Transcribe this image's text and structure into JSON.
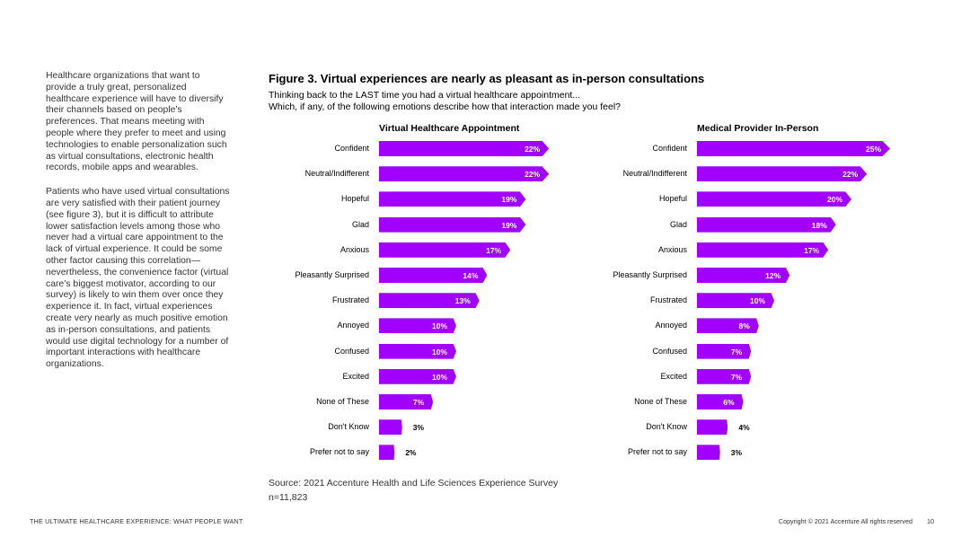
{
  "sidebar": {
    "paragraph1": "Healthcare organizations that want to provide a truly great, personalized healthcare experience will have to diversify their channels based on people’s preferences. That means meeting with people where they prefer to meet and using technologies to enable personalization such as virtual consultations, electronic health records, mobile apps and wearables.",
    "paragraph2": "Patients who have used virtual consultations are very satisfied with their patient journey (see figure 3), but it is difficult to attribute lower satisfaction levels among those who never had a virtual care appointment to the lack of virtual experience. It could be some other factor causing this correlation—nevertheless, the convenience factor (virtual care’s biggest motivator, according to our survey) is likely to win them over once they experience it. In fact, virtual experiences create very nearly as much positive emotion as in-person consultations, and patients would use digital technology for a number of important interactions with healthcare organizations."
  },
  "figure": {
    "title": "Figure 3. Virtual experiences are nearly as pleasant as in-person consultations",
    "subtitle_line1": "Thinking back to the LAST time you had a virtual healthcare appointment...",
    "subtitle_line2": "Which, if any, of the following emotions describe how that interaction made you feel?"
  },
  "chart_data": [
    {
      "type": "bar",
      "orientation": "horizontal",
      "title": "Virtual Healthcare Appointment",
      "categories": [
        "Confident",
        "Neutral/Indifferent",
        "Hopeful",
        "Glad",
        "Anxious",
        "Pleasantly Surprised",
        "Frustrated",
        "Annoyed",
        "Confused",
        "Excited",
        "None of These",
        "Don't Know",
        "Prefer not to say"
      ],
      "values": [
        22,
        22,
        19,
        19,
        17,
        14,
        13,
        10,
        10,
        10,
        7,
        3,
        2
      ],
      "value_labels": [
        "22%",
        "22%",
        "19%",
        "19%",
        "17%",
        "14%",
        "13%",
        "10%",
        "10%",
        "10%",
        "7%",
        "3%",
        "2%"
      ],
      "color": "#a100ff"
    },
    {
      "type": "bar",
      "orientation": "horizontal",
      "title": "Medical Provider In-Person",
      "categories": [
        "Confident",
        "Neutral/Indifferent",
        "Hopeful",
        "Glad",
        "Anxious",
        "Pleasantly Surprised",
        "Frustrated",
        "Annoyed",
        "Confused",
        "Excited",
        "None of These",
        "Don't Know",
        "Prefer not to say"
      ],
      "values": [
        25,
        22,
        20,
        18,
        17,
        12,
        10,
        8,
        7,
        7,
        6,
        4,
        3
      ],
      "value_labels": [
        "25%",
        "22%",
        "20%",
        "18%",
        "17%",
        "12%",
        "10%",
        "8%",
        "7%",
        "7%",
        "6%",
        "4%",
        "3%"
      ],
      "color": "#a100ff"
    }
  ],
  "source": {
    "line1": "Source: 2021 Accenture Health and Life Sciences Experience Survey",
    "line2": "n=11,823"
  },
  "footer": {
    "left": "THE ULTIMATE HEALTHCARE EXPERIENCE: WHAT PEOPLE WANT",
    "copyright": "Copyright © 2021 Accenture All rights reserved",
    "page_number": "10"
  }
}
